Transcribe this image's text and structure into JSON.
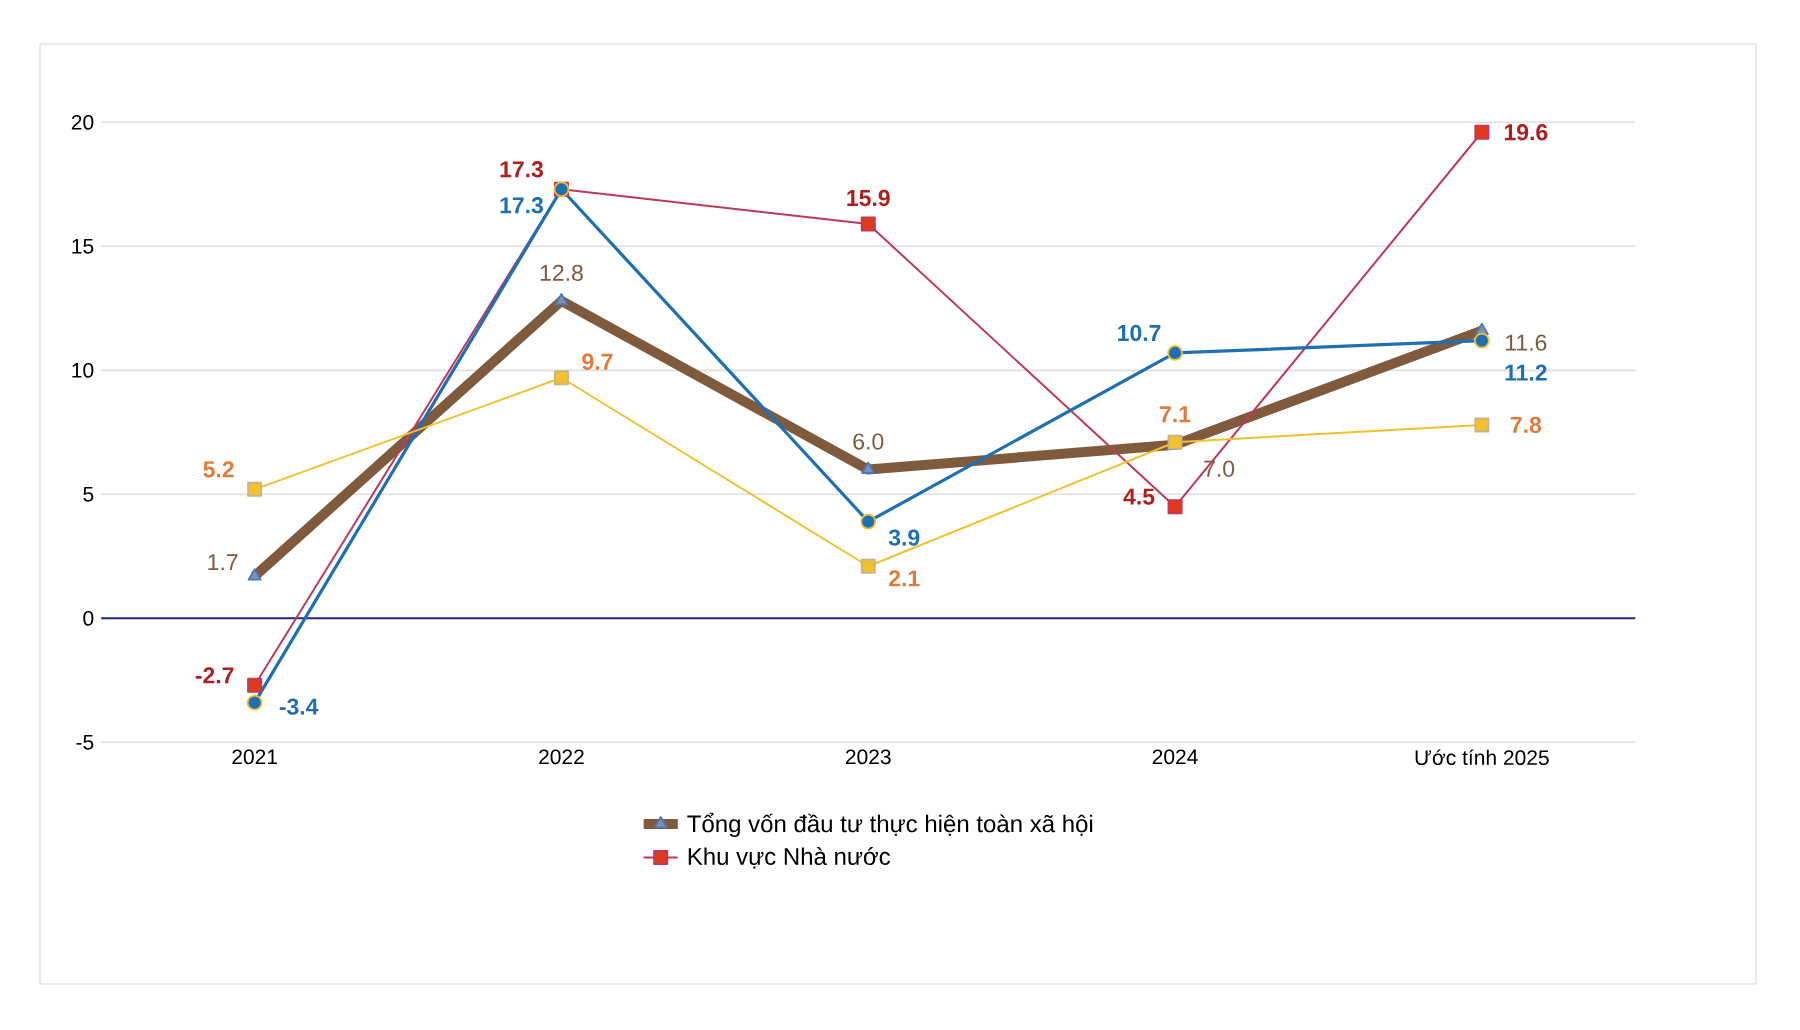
{
  "chart_data": {
    "type": "line",
    "categories": [
      "2021",
      "2022",
      "2023",
      "2024",
      "Ước tính 2025"
    ],
    "series": [
      {
        "name": "Tổng vốn đầu tư thực hiện toàn xã hội",
        "color": "#7f5a3c",
        "marker": "triangle",
        "values": [
          1.7,
          12.8,
          6.0,
          7.0,
          11.6
        ],
        "value_labels": [
          "1.7",
          "12.8",
          "6.0",
          "7.0",
          "11.6"
        ]
      },
      {
        "name": "Khu vực Nhà nước",
        "color": "#c0395a",
        "marker": "square",
        "values": [
          -2.7,
          17.3,
          15.9,
          4.5,
          19.6
        ],
        "value_labels": [
          "-2.7",
          "17.3",
          "15.9",
          "4.5",
          "19.6"
        ]
      },
      {
        "color": "#1f6fb5",
        "marker": "circle",
        "values": [
          -3.4,
          17.3,
          3.9,
          10.7,
          11.2
        ],
        "value_labels": [
          "-3.4",
          "17.3",
          "3.9",
          "10.7",
          "11.2"
        ]
      },
      {
        "color": "#f2c12e",
        "marker": "square",
        "values": [
          5.2,
          9.7,
          2.1,
          7.1,
          7.8
        ],
        "value_labels": [
          "5.2",
          "9.7",
          "2.1",
          "7.1",
          "7.8"
        ]
      }
    ],
    "ylim": [
      -5,
      20
    ],
    "yticks": [
      -5,
      0,
      5,
      10,
      15,
      20
    ],
    "ref_lines": [
      {
        "axis": "y",
        "value": 0,
        "color": "#1f2a7a"
      }
    ],
    "grid": "y",
    "legend": "bottom",
    "line_style": "solid"
  }
}
